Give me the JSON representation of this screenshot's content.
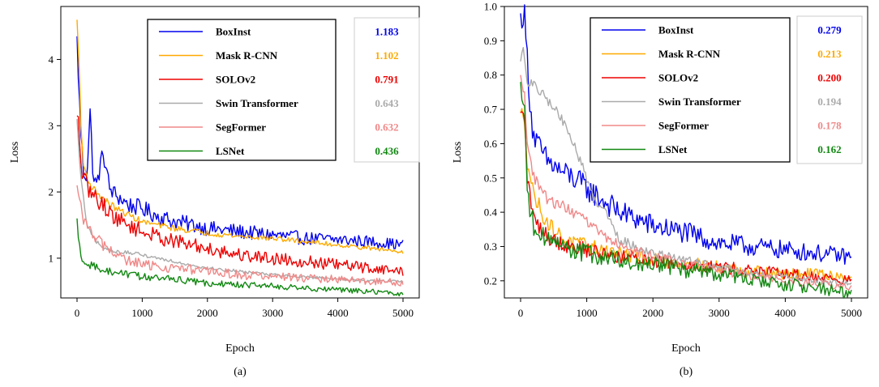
{
  "chart_data": [
    {
      "type": "line",
      "panel_label": "(a)",
      "xlabel": "Epoch",
      "ylabel": "Loss",
      "xlim": [
        0,
        5000
      ],
      "ylim": [
        0.4,
        4.8
      ],
      "xticks": [
        "0",
        "1000",
        "2000",
        "3000",
        "4000",
        "5000"
      ],
      "yticks": [
        "1",
        "2",
        "3",
        "4"
      ],
      "ytick_values": [
        1,
        2,
        3,
        4
      ],
      "legend_placement": "top-right",
      "series": [
        {
          "name": "BoxInst",
          "value_label": "1.183",
          "color": "#0000ee",
          "points": [
            [
              0,
              4.35
            ],
            [
              30,
              3.5
            ],
            [
              60,
              2.9
            ],
            [
              100,
              2.3
            ],
            [
              150,
              2.25
            ],
            [
              200,
              3.2
            ],
            [
              250,
              2.2
            ],
            [
              300,
              2.1
            ],
            [
              400,
              2.6
            ],
            [
              500,
              2.05
            ],
            [
              600,
              1.95
            ],
            [
              800,
              1.8
            ],
            [
              1000,
              1.75
            ],
            [
              1200,
              1.65
            ],
            [
              1500,
              1.55
            ],
            [
              1800,
              1.5
            ],
            [
              2000,
              1.45
            ],
            [
              2500,
              1.4
            ],
            [
              3000,
              1.35
            ],
            [
              3500,
              1.3
            ],
            [
              4000,
              1.28
            ],
            [
              4500,
              1.25
            ],
            [
              5000,
              1.2
            ]
          ],
          "noise": 0.14
        },
        {
          "name": "Mask R-CNN",
          "value_label": "1.102",
          "color": "#ffaa00",
          "points": [
            [
              0,
              4.6
            ],
            [
              30,
              4.0
            ],
            [
              60,
              3.0
            ],
            [
              100,
              2.4
            ],
            [
              200,
              2.1
            ],
            [
              400,
              1.9
            ],
            [
              600,
              1.75
            ],
            [
              800,
              1.65
            ],
            [
              1000,
              1.55
            ],
            [
              1500,
              1.45
            ],
            [
              2000,
              1.38
            ],
            [
              2500,
              1.33
            ],
            [
              3000,
              1.3
            ],
            [
              3500,
              1.25
            ],
            [
              4000,
              1.2
            ],
            [
              4500,
              1.15
            ],
            [
              5000,
              1.1
            ]
          ],
          "noise": 0.05
        },
        {
          "name": "SOLOv2",
          "value_label": "0.791",
          "color": "#ee0000",
          "points": [
            [
              0,
              3.15
            ],
            [
              30,
              3.0
            ],
            [
              60,
              2.4
            ],
            [
              100,
              2.2
            ],
            [
              200,
              2.0
            ],
            [
              400,
              1.8
            ],
            [
              600,
              1.6
            ],
            [
              800,
              1.5
            ],
            [
              1000,
              1.4
            ],
            [
              1500,
              1.25
            ],
            [
              2000,
              1.15
            ],
            [
              2500,
              1.05
            ],
            [
              3000,
              1.0
            ],
            [
              3500,
              0.95
            ],
            [
              4000,
              0.9
            ],
            [
              4500,
              0.85
            ],
            [
              5000,
              0.8
            ]
          ],
          "noise": 0.13
        },
        {
          "name": "Swin Transformer",
          "value_label": "0.643",
          "color": "#aaaaaa",
          "points": [
            [
              0,
              3.1
            ],
            [
              30,
              2.6
            ],
            [
              60,
              2.2
            ],
            [
              100,
              1.9
            ],
            [
              150,
              1.5
            ],
            [
              250,
              1.3
            ],
            [
              400,
              1.15
            ],
            [
              600,
              1.1
            ],
            [
              800,
              1.08
            ],
            [
              1000,
              1.05
            ],
            [
              1500,
              0.95
            ],
            [
              2000,
              0.85
            ],
            [
              2500,
              0.8
            ],
            [
              3000,
              0.75
            ],
            [
              3500,
              0.72
            ],
            [
              4000,
              0.68
            ],
            [
              4500,
              0.66
            ],
            [
              5000,
              0.65
            ]
          ],
          "noise": 0.03
        },
        {
          "name": "SegFormer",
          "value_label": "0.632",
          "color": "#f08888",
          "points": [
            [
              0,
              2.1
            ],
            [
              50,
              1.8
            ],
            [
              100,
              1.6
            ],
            [
              200,
              1.4
            ],
            [
              400,
              1.2
            ],
            [
              600,
              1.05
            ],
            [
              800,
              0.95
            ],
            [
              1000,
              0.9
            ],
            [
              1500,
              0.85
            ],
            [
              2000,
              0.8
            ],
            [
              2500,
              0.75
            ],
            [
              3000,
              0.72
            ],
            [
              3500,
              0.7
            ],
            [
              4000,
              0.68
            ],
            [
              4500,
              0.65
            ],
            [
              5000,
              0.63
            ]
          ],
          "noise": 0.09
        },
        {
          "name": "LSNet",
          "value_label": "0.436",
          "color": "#118811",
          "points": [
            [
              0,
              1.6
            ],
            [
              30,
              1.2
            ],
            [
              80,
              1.0
            ],
            [
              200,
              0.9
            ],
            [
              400,
              0.82
            ],
            [
              600,
              0.78
            ],
            [
              800,
              0.75
            ],
            [
              1000,
              0.72
            ],
            [
              1500,
              0.68
            ],
            [
              2000,
              0.62
            ],
            [
              2500,
              0.6
            ],
            [
              3000,
              0.58
            ],
            [
              3500,
              0.55
            ],
            [
              4000,
              0.52
            ],
            [
              4500,
              0.5
            ],
            [
              5000,
              0.46
            ]
          ],
          "noise": 0.06
        }
      ]
    },
    {
      "type": "line",
      "panel_label": "(b)",
      "xlabel": "Epoch",
      "ylabel": "Loss",
      "xlim": [
        0,
        5000
      ],
      "ylim": [
        0.15,
        1.0
      ],
      "xticks": [
        "0",
        "1000",
        "2000",
        "3000",
        "4000",
        "5000"
      ],
      "yticks": [
        "0.2",
        "0.3",
        "0.4",
        "0.5",
        "0.6",
        "0.7",
        "0.8",
        "0.9",
        "1.0"
      ],
      "ytick_values": [
        0.2,
        0.3,
        0.4,
        0.5,
        0.6,
        0.7,
        0.8,
        0.9,
        1.0
      ],
      "legend_placement": "top-right",
      "series": [
        {
          "name": "BoxInst",
          "value_label": "0.279",
          "color": "#0000ee",
          "points": [
            [
              0,
              0.98
            ],
            [
              60,
              0.97
            ],
            [
              100,
              0.85
            ],
            [
              150,
              0.7
            ],
            [
              200,
              0.62
            ],
            [
              300,
              0.58
            ],
            [
              400,
              0.55
            ],
            [
              600,
              0.52
            ],
            [
              800,
              0.5
            ],
            [
              1000,
              0.47
            ],
            [
              1200,
              0.44
            ],
            [
              1500,
              0.4
            ],
            [
              2000,
              0.36
            ],
            [
              2500,
              0.34
            ],
            [
              3000,
              0.31
            ],
            [
              3500,
              0.3
            ],
            [
              4000,
              0.29
            ],
            [
              4500,
              0.28
            ],
            [
              5000,
              0.27
            ]
          ],
          "noise": 0.04
        },
        {
          "name": "Mask R-CNN",
          "value_label": "0.213",
          "color": "#ffaa00",
          "points": [
            [
              0,
              0.69
            ],
            [
              60,
              0.68
            ],
            [
              100,
              0.55
            ],
            [
              200,
              0.45
            ],
            [
              400,
              0.37
            ],
            [
              600,
              0.33
            ],
            [
              800,
              0.31
            ],
            [
              1000,
              0.3
            ],
            [
              1500,
              0.28
            ],
            [
              2000,
              0.26
            ],
            [
              2500,
              0.25
            ],
            [
              3000,
              0.24
            ],
            [
              3500,
              0.23
            ],
            [
              4000,
              0.22
            ],
            [
              4500,
              0.22
            ],
            [
              5000,
              0.21
            ]
          ],
          "noise": 0.025
        },
        {
          "name": "SOLOv2",
          "value_label": "0.200",
          "color": "#ee0000",
          "points": [
            [
              0,
              0.69
            ],
            [
              60,
              0.68
            ],
            [
              100,
              0.5
            ],
            [
              200,
              0.38
            ],
            [
              400,
              0.33
            ],
            [
              600,
              0.31
            ],
            [
              800,
              0.3
            ],
            [
              1000,
              0.29
            ],
            [
              1500,
              0.27
            ],
            [
              2000,
              0.26
            ],
            [
              2500,
              0.25
            ],
            [
              3000,
              0.24
            ],
            [
              3500,
              0.23
            ],
            [
              4000,
              0.22
            ],
            [
              4500,
              0.21
            ],
            [
              5000,
              0.2
            ]
          ],
          "noise": 0.025
        },
        {
          "name": "Swin Transformer",
          "value_label": "0.194",
          "color": "#aaaaaa",
          "points": [
            [
              0,
              0.84
            ],
            [
              30,
              0.88
            ],
            [
              60,
              0.85
            ],
            [
              100,
              0.78
            ],
            [
              200,
              0.77
            ],
            [
              300,
              0.75
            ],
            [
              400,
              0.73
            ],
            [
              600,
              0.68
            ],
            [
              800,
              0.6
            ],
            [
              1000,
              0.5
            ],
            [
              1100,
              0.44
            ],
            [
              1300,
              0.4
            ],
            [
              1500,
              0.32
            ],
            [
              2000,
              0.28
            ],
            [
              2500,
              0.26
            ],
            [
              3000,
              0.24
            ],
            [
              3500,
              0.22
            ],
            [
              4000,
              0.21
            ],
            [
              4500,
              0.2
            ],
            [
              5000,
              0.19
            ]
          ],
          "noise": 0.015
        },
        {
          "name": "SegFormer",
          "value_label": "0.178",
          "color": "#f08888",
          "points": [
            [
              0,
              0.8
            ],
            [
              60,
              0.75
            ],
            [
              100,
              0.6
            ],
            [
              200,
              0.5
            ],
            [
              400,
              0.44
            ],
            [
              600,
              0.42
            ],
            [
              800,
              0.4
            ],
            [
              1000,
              0.37
            ],
            [
              1500,
              0.3
            ],
            [
              2000,
              0.27
            ],
            [
              2500,
              0.25
            ],
            [
              3000,
              0.23
            ],
            [
              3500,
              0.21
            ],
            [
              4000,
              0.2
            ],
            [
              4500,
              0.19
            ],
            [
              5000,
              0.18
            ]
          ],
          "noise": 0.018
        },
        {
          "name": "LSNet",
          "value_label": "0.162",
          "color": "#118811",
          "points": [
            [
              0,
              0.78
            ],
            [
              60,
              0.7
            ],
            [
              100,
              0.45
            ],
            [
              200,
              0.36
            ],
            [
              400,
              0.32
            ],
            [
              600,
              0.3
            ],
            [
              800,
              0.29
            ],
            [
              1000,
              0.28
            ],
            [
              1500,
              0.26
            ],
            [
              2000,
              0.25
            ],
            [
              2500,
              0.23
            ],
            [
              3000,
              0.22
            ],
            [
              3500,
              0.2
            ],
            [
              4000,
              0.19
            ],
            [
              4500,
              0.18
            ],
            [
              5000,
              0.16
            ]
          ],
          "noise": 0.03
        }
      ]
    }
  ]
}
